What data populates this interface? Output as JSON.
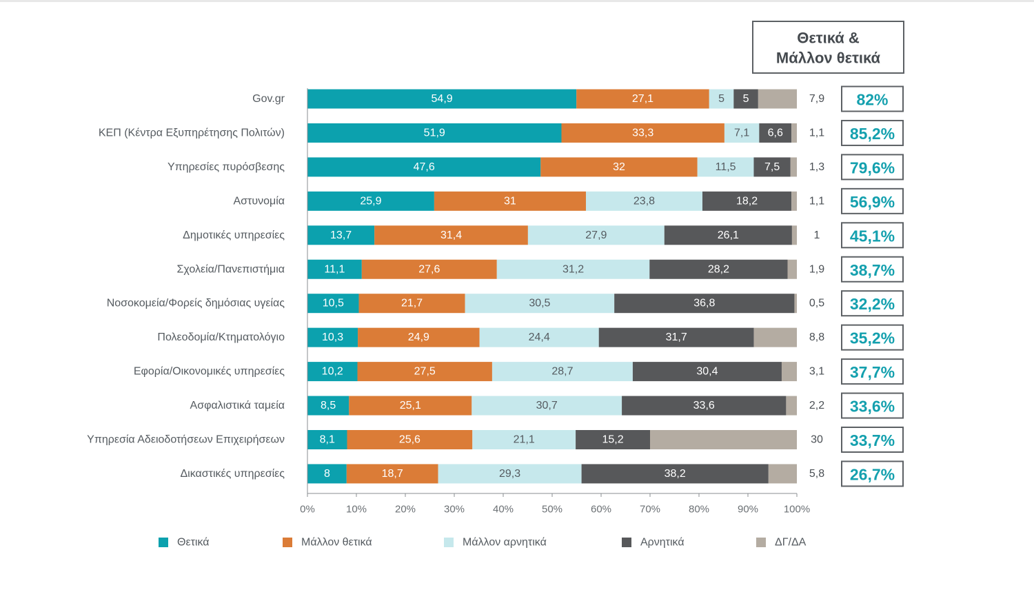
{
  "chart_data": {
    "type": "bar",
    "orientation": "horizontal",
    "stacked": "percent",
    "categories": [
      "Gov.gr",
      "ΚΕΠ (Κέντρα Εξυπηρέτησης Πολιτών)",
      "Υπηρεσίες πυρόσβεσης",
      "Αστυνομία",
      "Δημοτικές υπηρεσίες",
      "Σχολεία/Πανεπιστήμια",
      "Νοσοκομεία/Φορείς δημόσιας υγείας",
      "Πολεοδομία/Κτηματολόγιο",
      "Εφορία/Οικονομικές υπηρεσίες",
      "Ασφαλιστικά ταμεία",
      "Υπηρεσία Αδειοδοτήσεων Επιχειρήσεων",
      "Δικαστικές υπηρεσίες"
    ],
    "series": [
      {
        "name": "Θετικά",
        "color": "#0ca1ae",
        "text_color": "#ffffff",
        "values": [
          54.9,
          51.9,
          47.6,
          25.9,
          13.7,
          11.1,
          10.5,
          10.3,
          10.2,
          8.5,
          8.1,
          8
        ],
        "labels": [
          "54,9",
          "51,9",
          "47,6",
          "25,9",
          "13,7",
          "11,1",
          "10,5",
          "10,3",
          "10,2",
          "8,5",
          "8,1",
          "8"
        ]
      },
      {
        "name": "Μάλλον θετικά",
        "color": "#db7c37",
        "text_color": "#ffffff",
        "values": [
          27.1,
          33.3,
          32,
          31,
          31.4,
          27.6,
          21.7,
          24.9,
          27.5,
          25.1,
          25.6,
          18.7
        ],
        "labels": [
          "27,1",
          "33,3",
          "32",
          "31",
          "31,4",
          "27,6",
          "21,7",
          "24,9",
          "27,5",
          "25,1",
          "25,6",
          "18,7"
        ]
      },
      {
        "name": "Μάλλον αρνητικά",
        "color": "#c6e8ec",
        "text_color": "#555b60",
        "values": [
          5,
          7.1,
          11.5,
          23.8,
          27.9,
          31.2,
          30.5,
          24.4,
          28.7,
          30.7,
          21.1,
          29.3
        ],
        "labels": [
          "5",
          "7,1",
          "11,5",
          "23,8",
          "27,9",
          "31,2",
          "30,5",
          "24,4",
          "28,7",
          "30,7",
          "21,1",
          "29,3"
        ]
      },
      {
        "name": "Αρνητικά",
        "color": "#57585a",
        "text_color": "#ffffff",
        "values": [
          5,
          6.6,
          7.5,
          18.2,
          26.1,
          28.2,
          36.8,
          31.7,
          30.4,
          33.6,
          15.2,
          38.2
        ],
        "labels": [
          "5",
          "6,6",
          "7,5",
          "18,2",
          "26,1",
          "28,2",
          "36,8",
          "31,7",
          "30,4",
          "33,6",
          "15,2",
          "38,2"
        ]
      },
      {
        "name": "ΔΓ/ΔΑ",
        "color": "#b4aca2",
        "text_color": "#555b60",
        "values": [
          7.9,
          1.1,
          1.3,
          1.1,
          1,
          1.9,
          0.5,
          8.8,
          3.1,
          2.2,
          30,
          5.8
        ],
        "labels": [
          "7,9",
          "1,1",
          "1,3",
          "1,1",
          "1",
          "1,9",
          "0,5",
          "8,8",
          "3,1",
          "2,2",
          "30",
          "5,8"
        ]
      }
    ],
    "totals_header": [
      "Θετικά &",
      "Μάλλον θετικά"
    ],
    "totals": [
      "82%",
      "85,2%",
      "79,6%",
      "56,9%",
      "45,1%",
      "38,7%",
      "32,2%",
      "35,2%",
      "37,7%",
      "33,6%",
      "33,7%",
      "26,7%"
    ],
    "xaxis": {
      "min": 0,
      "max": 100,
      "ticks": [
        0,
        10,
        20,
        30,
        40,
        50,
        60,
        70,
        80,
        90,
        100
      ],
      "tick_labels": [
        "0%",
        "10%",
        "20%",
        "30%",
        "40%",
        "50%",
        "60%",
        "70%",
        "80%",
        "90%",
        "100%"
      ]
    },
    "grid": false,
    "legend_position": "bottom"
  }
}
